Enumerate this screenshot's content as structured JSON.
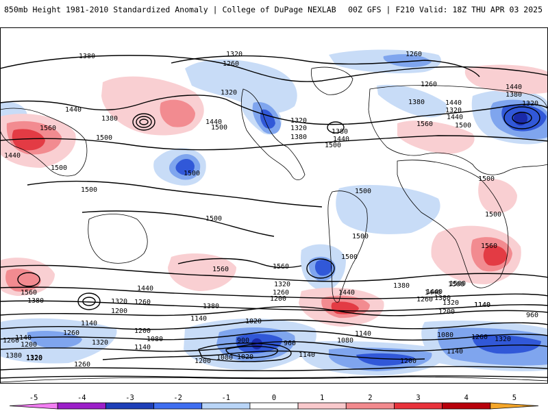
{
  "header": {
    "title_left": "850mb Height 1981-2010 Standardized Anomaly | College of DuPage NEXLAB",
    "title_right": "00Z GFS | F210 Valid: 18Z THU APR 03 2025"
  },
  "colorbar": {
    "ticks": [
      "-5",
      "-4",
      "-3",
      "-2",
      "-1",
      "0",
      "1",
      "2",
      "3",
      "4",
      "5"
    ],
    "colors": [
      "#f27ef2",
      "#9c1fc9",
      "#1e3fb8",
      "#3f6ef0",
      "#b9d5f7",
      "#ffffff",
      "#f9c9cc",
      "#f28a8e",
      "#e8323b",
      "#b8000b",
      "#f4a62a"
    ],
    "min": -5.5,
    "max": 5.5
  },
  "map": {
    "anomaly_colors": {
      "neg1": "#c8dcf7",
      "neg2": "#7fa5ee",
      "neg3": "#3158d8",
      "neg4": "#1a2aa8",
      "pos1": "#f9cfd2",
      "pos2": "#f28b90",
      "pos3": "#e33b44"
    },
    "height_labels": [
      {
        "id": "h1380-a",
        "text": "1380"
      },
      {
        "id": "h1320-a",
        "text": "1320"
      },
      {
        "id": "h1260-a",
        "text": "1260"
      },
      {
        "id": "h1260-b",
        "text": "1260"
      },
      {
        "id": "h1320-b",
        "text": "1320"
      },
      {
        "id": "h1260-c",
        "text": "1260"
      },
      {
        "id": "h1440-a",
        "text": "1440"
      },
      {
        "id": "h1380-b",
        "text": "1380"
      },
      {
        "id": "h1320-c",
        "text": "1320"
      },
      {
        "id": "h1440-b",
        "text": "1440"
      },
      {
        "id": "h1380-c",
        "text": "1380"
      },
      {
        "id": "h1440-c",
        "text": "1440"
      },
      {
        "id": "h1500-a",
        "text": "1500"
      },
      {
        "id": "h1320-d",
        "text": "1320"
      },
      {
        "id": "h1380-d",
        "text": "1380"
      },
      {
        "id": "h1500-b",
        "text": "1500"
      },
      {
        "id": "h1440-d",
        "text": "1440"
      },
      {
        "id": "h1380-e",
        "text": "1380"
      },
      {
        "id": "h1320-e",
        "text": "1320"
      },
      {
        "id": "h1440-e",
        "text": "1440"
      },
      {
        "id": "h1500-c",
        "text": "1500"
      },
      {
        "id": "h1560-a",
        "text": "1560"
      },
      {
        "id": "h1560-b",
        "text": "1560"
      },
      {
        "id": "h1500-d",
        "text": "1500"
      },
      {
        "id": "h1500-e",
        "text": "1500"
      },
      {
        "id": "h1500-f",
        "text": "1500"
      },
      {
        "id": "h1500-g",
        "text": "1500"
      },
      {
        "id": "h1500-h",
        "text": "1500"
      },
      {
        "id": "h1500-i",
        "text": "1500"
      },
      {
        "id": "h1500-j",
        "text": "1500"
      },
      {
        "id": "h1500-k",
        "text": "1500"
      },
      {
        "id": "h1500-l",
        "text": "1500"
      },
      {
        "id": "h1560-c",
        "text": "1560"
      },
      {
        "id": "h1560-d",
        "text": "1560"
      },
      {
        "id": "h1560-e",
        "text": "1560"
      },
      {
        "id": "h1560-f",
        "text": "1560"
      },
      {
        "id": "h1500-m",
        "text": "1500"
      },
      {
        "id": "h1500-n",
        "text": "1500"
      },
      {
        "id": "h1440-f",
        "text": "1440"
      },
      {
        "id": "h1380-f",
        "text": "1380"
      },
      {
        "id": "h1440-g",
        "text": "1440"
      },
      {
        "id": "h1320-f",
        "text": "1320"
      },
      {
        "id": "h1260-d",
        "text": "1260"
      },
      {
        "id": "h1200-a",
        "text": "1200"
      },
      {
        "id": "h1380-g",
        "text": "1380"
      },
      {
        "id": "h1140-a",
        "text": "1140"
      },
      {
        "id": "h1320-g",
        "text": "1320"
      },
      {
        "id": "h1260-e",
        "text": "1260"
      },
      {
        "id": "h1200-b",
        "text": "1200"
      },
      {
        "id": "h1380-h",
        "text": "1380"
      },
      {
        "id": "h1440-h",
        "text": "1440"
      },
      {
        "id": "h1500-o",
        "text": "1500"
      },
      {
        "id": "h1440-i",
        "text": "1440"
      },
      {
        "id": "h1380-i",
        "text": "1380"
      },
      {
        "id": "h1320-h",
        "text": "1320"
      },
      {
        "id": "h1260-f",
        "text": "1260"
      },
      {
        "id": "h1200-c",
        "text": "1200"
      },
      {
        "id": "h1140-b",
        "text": "1140"
      },
      {
        "id": "h1140-c",
        "text": "1140"
      },
      {
        "id": "h1200-d",
        "text": "1200"
      },
      {
        "id": "h1260-g",
        "text": "1260"
      },
      {
        "id": "h1320-i",
        "text": "1320"
      },
      {
        "id": "h1260-h",
        "text": "1260"
      },
      {
        "id": "h1320-j",
        "text": "1320"
      },
      {
        "id": "h1140-d",
        "text": "1140"
      },
      {
        "id": "h1200-e",
        "text": "1200"
      },
      {
        "id": "h1080-a",
        "text": "1080"
      },
      {
        "id": "h1140-e",
        "text": "1140"
      },
      {
        "id": "h1020-a",
        "text": "1020"
      },
      {
        "id": "h900-a",
        "text": "900"
      },
      {
        "id": "h960-a",
        "text": "960"
      },
      {
        "id": "h1080-b",
        "text": "1080"
      },
      {
        "id": "h1020-b",
        "text": "1020"
      },
      {
        "id": "h1200-f",
        "text": "1200"
      },
      {
        "id": "h1140-f",
        "text": "1140"
      },
      {
        "id": "h1140-g",
        "text": "1140"
      },
      {
        "id": "h1080-c",
        "text": "1080"
      },
      {
        "id": "h1080-d",
        "text": "1080"
      },
      {
        "id": "h1200-g",
        "text": "1200"
      },
      {
        "id": "h1140-h",
        "text": "1140"
      },
      {
        "id": "h960-b",
        "text": "960"
      },
      {
        "id": "h1260-i",
        "text": "1260"
      },
      {
        "id": "h1320-k",
        "text": "1320"
      },
      {
        "id": "h1140-i",
        "text": "1140"
      },
      {
        "id": "h1260-j",
        "text": "1260"
      },
      {
        "id": "h1320-l",
        "text": "1320"
      },
      {
        "id": "h1380-j",
        "text": "1380"
      },
      {
        "id": "h1440-j",
        "text": "1440"
      },
      {
        "id": "h1380-k",
        "text": "1380"
      },
      {
        "id": "h1440-k",
        "text": "1440"
      },
      {
        "id": "h1320-m",
        "text": "1320"
      }
    ]
  }
}
